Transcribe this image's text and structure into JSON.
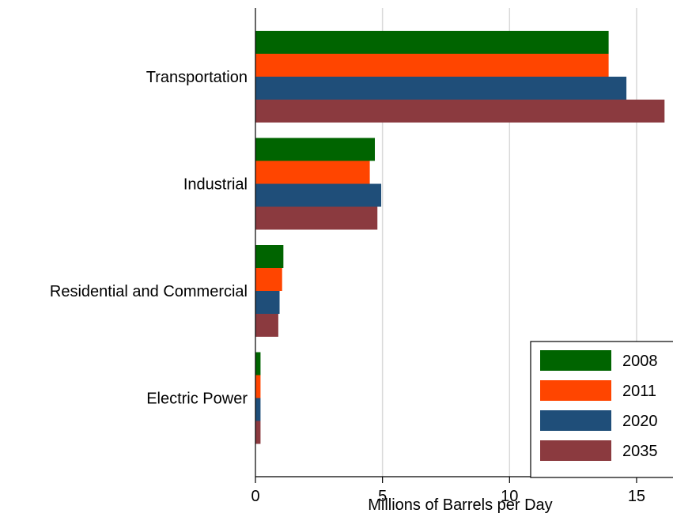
{
  "chart_data": {
    "type": "bar",
    "orientation": "horizontal",
    "categories": [
      "Transportation",
      "Industrial",
      "Residential and Commercial",
      "Electric Power"
    ],
    "series": [
      {
        "name": "2008",
        "color": "#006400",
        "values": [
          13.9,
          4.7,
          1.1,
          0.2
        ]
      },
      {
        "name": "2011",
        "color": "#ff4500",
        "values": [
          13.9,
          4.5,
          1.05,
          0.2
        ]
      },
      {
        "name": "2020",
        "color": "#1f4e79",
        "values": [
          14.6,
          4.95,
          0.95,
          0.2
        ]
      },
      {
        "name": "2035",
        "color": "#8b3a3f",
        "values": [
          16.1,
          4.8,
          0.9,
          0.2
        ]
      }
    ],
    "xlabel": "Millions of Barrels per Day",
    "xlim": [
      0,
      16
    ],
    "xticks": [
      0,
      5,
      10,
      15
    ],
    "grid": true,
    "legend_position": "bottom-right"
  }
}
